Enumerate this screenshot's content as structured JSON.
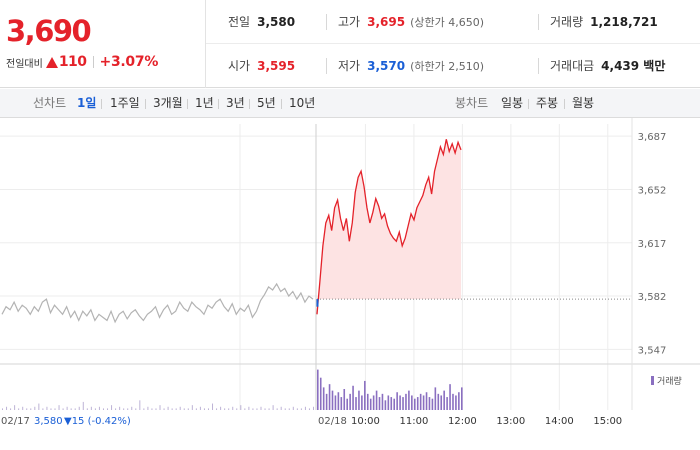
{
  "quote": {
    "price": "3,690",
    "change_label": "전일대비",
    "change_amount": "110",
    "change_rate": "+3.07%",
    "prev_close": {
      "label": "전일",
      "value": "3,580"
    },
    "high": {
      "label": "고가",
      "value": "3,695",
      "limit_label": "(상한가 4,650)"
    },
    "volume": {
      "label": "거래량",
      "value": "1,218,721"
    },
    "open": {
      "label": "시가",
      "value": "3,595"
    },
    "low": {
      "label": "저가",
      "value": "3,570",
      "limit_label": "(하한가 2,510)"
    },
    "trade_value": {
      "label": "거래대금",
      "value": "4,439 백만"
    }
  },
  "toolbar": {
    "line_chart_label": "선차트",
    "periods": [
      "1일",
      "1주일",
      "3개월",
      "1년",
      "3년",
      "5년",
      "10년"
    ],
    "active_period": "1일",
    "candle_chart_label": "봉차트",
    "candle_periods": [
      "일봉",
      "주봉",
      "월봉"
    ]
  },
  "colors": {
    "up": "#e4222a",
    "down": "#1a5fd6",
    "previous_day_line": "#b3b3b3",
    "volume_bar": "#8a6fc0"
  },
  "chart_data": {
    "type": "line",
    "ylim": [
      3540,
      3695
    ],
    "y_ticks": [
      3687,
      3652,
      3617,
      3582,
      3547
    ],
    "y_tick_labels": [
      "3,687",
      "3,652",
      "3,617",
      "3,582",
      "3,547"
    ],
    "reference_price": 3580,
    "previous_day": {
      "date_label": "02/17",
      "close_label": "3,580",
      "change_label": "▼15 (-0.42%)",
      "prices": [
        3570,
        3575,
        3573,
        3578,
        3572,
        3576,
        3574,
        3570,
        3575,
        3572,
        3578,
        3580,
        3571,
        3576,
        3573,
        3570,
        3575,
        3568,
        3572,
        3566,
        3572,
        3569,
        3573,
        3566,
        3570,
        3568,
        3566,
        3572,
        3565,
        3570,
        3572,
        3567,
        3571,
        3573,
        3569,
        3566,
        3570,
        3572,
        3575,
        3568,
        3573,
        3576,
        3570,
        3572,
        3578,
        3574,
        3572,
        3578,
        3575,
        3573,
        3570,
        3576,
        3574,
        3578,
        3580,
        3575,
        3572,
        3577,
        3570,
        3574,
        3572,
        3576,
        3568,
        3572,
        3579,
        3583,
        3588,
        3586,
        3590,
        3585,
        3587,
        3582,
        3585,
        3580,
        3584,
        3578,
        3582,
        3580
      ]
    },
    "today": {
      "date_label": "02/18",
      "prices": [
        3570,
        3592,
        3615,
        3630,
        3635,
        3625,
        3640,
        3645,
        3633,
        3625,
        3633,
        3618,
        3630,
        3650,
        3660,
        3664,
        3654,
        3640,
        3630,
        3637,
        3646,
        3641,
        3633,
        3636,
        3628,
        3623,
        3620,
        3618,
        3624,
        3615,
        3620,
        3628,
        3636,
        3632,
        3640,
        3644,
        3648,
        3655,
        3660,
        3649,
        3664,
        3672,
        3680,
        3675,
        3685,
        3677,
        3682,
        3676,
        3683,
        3678
      ]
    },
    "x_tick_labels": [
      "10:00",
      "11:00",
      "12:00",
      "13:00",
      "14:00",
      "15:00"
    ],
    "volume_legend": "거래량",
    "previous_day_volume": [
      1,
      2,
      1,
      3,
      1,
      2,
      1,
      1,
      2,
      4,
      1,
      2,
      1,
      1,
      3,
      1,
      2,
      1,
      1,
      2,
      5,
      1,
      2,
      1,
      2,
      1,
      1,
      3,
      1,
      2,
      1,
      1,
      2,
      1,
      6,
      1,
      2,
      1,
      1,
      3,
      1,
      2,
      1,
      1,
      2,
      1,
      1,
      3,
      1,
      2,
      1,
      1,
      4,
      1,
      2,
      1,
      1,
      2,
      1,
      3,
      1,
      2,
      1,
      1,
      2,
      1,
      1,
      3,
      1,
      2,
      1,
      1,
      2,
      1,
      1,
      2,
      1,
      2
    ],
    "today_volume": [
      25,
      20,
      14,
      10,
      16,
      12,
      9,
      11,
      8,
      13,
      7,
      10,
      15,
      8,
      12,
      9,
      18,
      10,
      7,
      9,
      12,
      8,
      10,
      6,
      9,
      8,
      7,
      11,
      9,
      8,
      10,
      12,
      9,
      7,
      8,
      10,
      9,
      11,
      8,
      7,
      14,
      10,
      9,
      12,
      8,
      16,
      10,
      9,
      11,
      14
    ]
  }
}
